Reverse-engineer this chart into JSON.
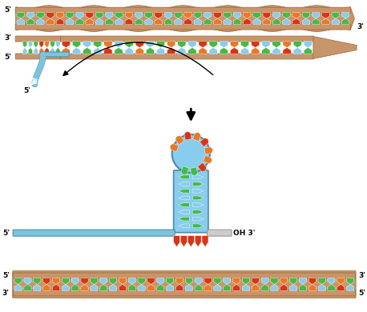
{
  "bg_color": "#ffffff",
  "tan_color": "#c8956a",
  "blue_strand": "#7ac4de",
  "dark_blue": "#4a8aaa",
  "green_color": "#44bb44",
  "dark_green": "#228822",
  "red_color": "#dd3311",
  "orange_color": "#ee7722",
  "light_blue": "#88ccee",
  "rna_c": [
    "#44bb44",
    "#88ccee",
    "#44bb44",
    "#dd3311",
    "#ee7722",
    "#44bb44",
    "#88ccee",
    "#dd3311",
    "#44bb44",
    "#88ccee",
    "#44bb44",
    "#ee7722",
    "#88ccee",
    "#44bb44",
    "#dd3311",
    "#88ccee",
    "#44bb44",
    "#ee7722",
    "#44bb44",
    "#88ccee",
    "#dd3311",
    "#44bb44",
    "#88ccee",
    "#ee7722",
    "#44bb44",
    "#dd3311",
    "#88ccee",
    "#44bb44",
    "#ee7722",
    "#44bb44",
    "#88ccee",
    "#dd3311",
    "#44bb44",
    "#88ccee",
    "#ee7722",
    "#44bb44"
  ]
}
